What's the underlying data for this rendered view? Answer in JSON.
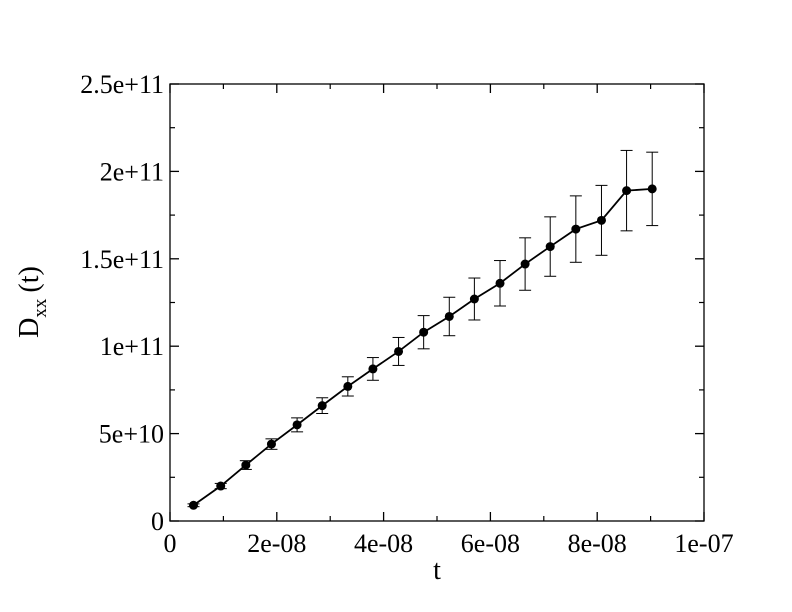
{
  "chart_data": {
    "type": "line",
    "title": "",
    "xlabel": "t",
    "ylabel": {
      "main": "D",
      "sub": "xx",
      "suffix": "(t)"
    },
    "xlim": [
      0,
      1e-07
    ],
    "ylim": [
      0,
      250000000000.0
    ],
    "xticks": [
      0,
      2e-08,
      4e-08,
      6e-08,
      8e-08,
      1e-07
    ],
    "xtick_labels": [
      "0",
      "2e-08",
      "4e-08",
      "6e-08",
      "8e-08",
      "1e-07"
    ],
    "yticks": [
      0,
      50000000000.0,
      100000000000.0,
      150000000000.0,
      200000000000.0,
      250000000000.0
    ],
    "ytick_labels": [
      "0",
      "5e+10",
      "1e+11",
      "1.5e+11",
      "2e+11",
      "2.5e+11"
    ],
    "grid": false,
    "legend": "none",
    "series": [
      {
        "color": "#000000",
        "marker": "circle",
        "x": [
          4.4e-09,
          9.5e-09,
          1.42e-08,
          1.9e-08,
          2.38e-08,
          2.85e-08,
          3.33e-08,
          3.8e-08,
          4.28e-08,
          4.75e-08,
          5.23e-08,
          5.7e-08,
          6.18e-08,
          6.65e-08,
          7.12e-08,
          7.6e-08,
          8.08e-08,
          8.55e-08,
          9.03e-08
        ],
        "y": [
          9000000000.0,
          20000000000.0,
          32000000000.0,
          44000000000.0,
          55000000000.0,
          66000000000.0,
          77000000000.0,
          87000000000.0,
          97000000000.0,
          108000000000.0,
          117000000000.0,
          127000000000.0,
          136000000000.0,
          147000000000.0,
          157000000000.0,
          167000000000.0,
          172000000000.0,
          189000000000.0,
          190000000000.0
        ],
        "err": [
          800000000.0,
          1500000000.0,
          2500000000.0,
          3000000000.0,
          4000000000.0,
          4500000000.0,
          5500000000.0,
          6500000000.0,
          8000000000.0,
          9500000000.0,
          11000000000.0,
          12000000000.0,
          13000000000.0,
          15000000000.0,
          17000000000.0,
          19000000000.0,
          20000000000.0,
          23000000000.0,
          21000000000.0
        ]
      }
    ]
  }
}
